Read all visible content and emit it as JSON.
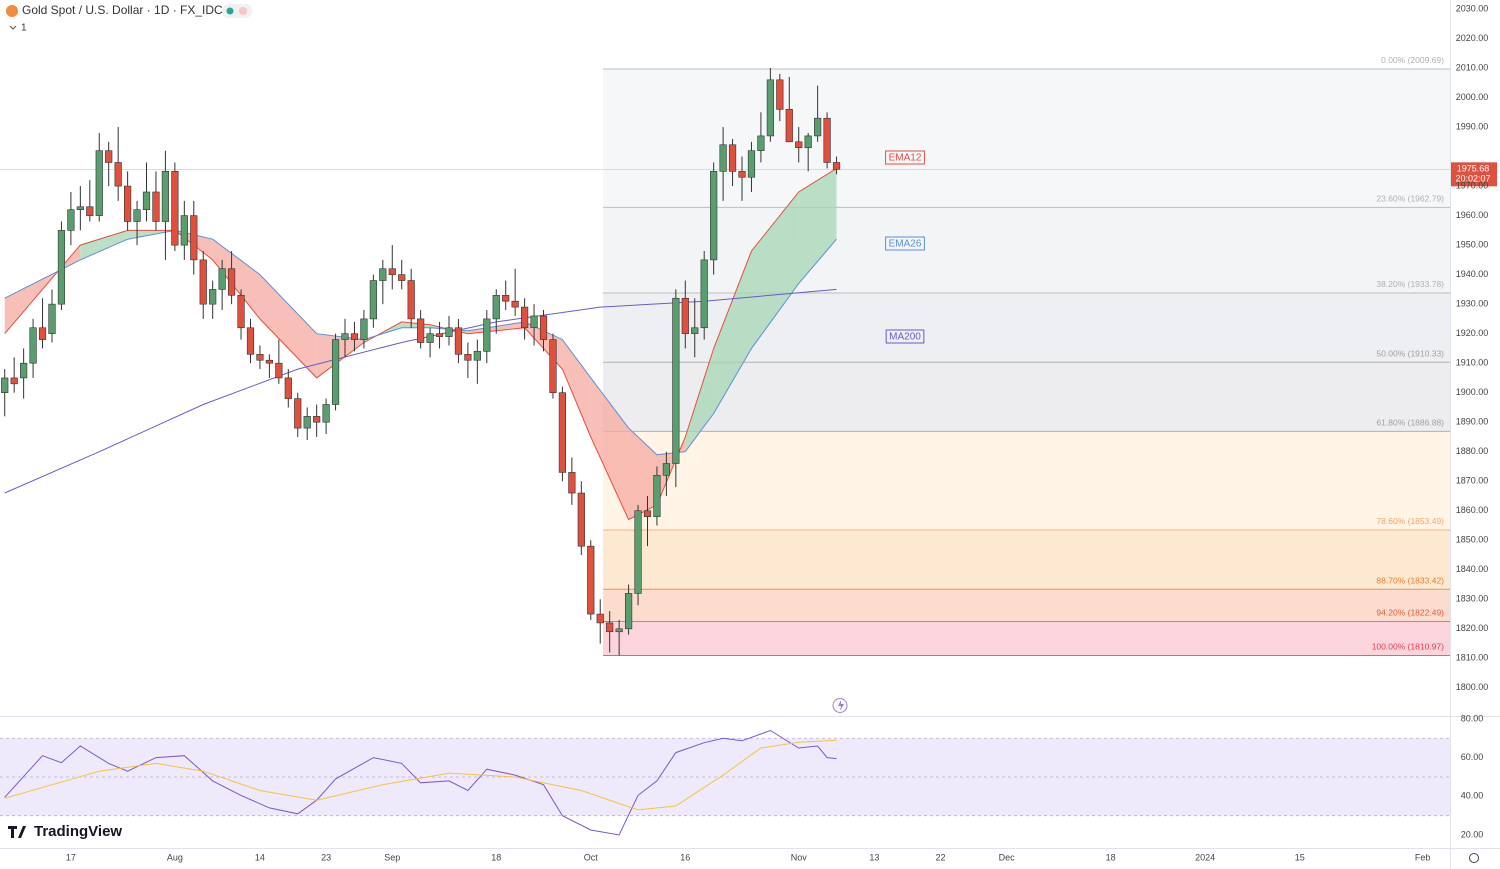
{
  "chart_data": [
    {
      "type": "candlestick",
      "title": "Gold Spot / U.S. Dollar · 1D · FX_IDC",
      "interval_badge": "1",
      "brand": "TradingView",
      "up_color": "#5a9e6f",
      "down_color": "#e0503f",
      "ohlc": {
        "open": [
          1900,
          1905,
          1905,
          1910,
          1922,
          1920,
          1930,
          1955,
          1962,
          1963,
          1960,
          1982,
          1978,
          1970,
          1958,
          1962,
          1968,
          1958,
          1975,
          1950,
          1960,
          1945,
          1930,
          1935,
          1942,
          1933,
          1922,
          1913,
          1911,
          1910,
          1905,
          1898,
          1888,
          1892,
          1890,
          1896,
          1918,
          1920,
          1918,
          1925,
          1938,
          1942,
          1940,
          1938,
          1925,
          1917,
          1920,
          1919,
          1922,
          1913,
          1911,
          1914,
          1925,
          1933,
          1931,
          1929,
          1922,
          1926,
          1918,
          1900,
          1873,
          1866,
          1848,
          1825,
          1822,
          1819,
          1820,
          1832,
          1860,
          1858,
          1872,
          1876,
          1932,
          1920,
          1922,
          1945,
          1975,
          1984,
          1975,
          1973,
          1982,
          1987,
          2006,
          1996,
          1985,
          1983,
          1987,
          1993,
          1978
        ],
        "high": [
          1908,
          1912,
          1915,
          1925,
          1932,
          1935,
          1958,
          1968,
          1970,
          1972,
          1988,
          1985,
          1990,
          1975,
          1965,
          1978,
          1975,
          1982,
          1978,
          1965,
          1965,
          1948,
          1938,
          1945,
          1948,
          1935,
          1925,
          1916,
          1913,
          1918,
          1908,
          1900,
          1895,
          1896,
          1898,
          1920,
          1925,
          1924,
          1928,
          1940,
          1945,
          1950,
          1945,
          1942,
          1928,
          1922,
          1924,
          1926,
          1925,
          1917,
          1918,
          1928,
          1935,
          1938,
          1942,
          1932,
          1930,
          1928,
          1920,
          1902,
          1878,
          1870,
          1850,
          1830,
          1826,
          1823,
          1835,
          1862,
          1865,
          1875,
          1880,
          1935,
          1938,
          1932,
          1948,
          1978,
          1990,
          1986,
          1980,
          1985,
          1995,
          2010,
          2008,
          2007,
          1990,
          1988,
          2004,
          1995,
          1980
        ],
        "low": [
          1892,
          1900,
          1898,
          1905,
          1915,
          1917,
          1928,
          1950,
          1955,
          1958,
          1958,
          1970,
          1965,
          1955,
          1950,
          1958,
          1955,
          1945,
          1948,
          1945,
          1940,
          1925,
          1925,
          1928,
          1930,
          1918,
          1910,
          1908,
          1905,
          1903,
          1895,
          1885,
          1884,
          1885,
          1886,
          1894,
          1912,
          1914,
          1915,
          1922,
          1930,
          1935,
          1935,
          1922,
          1915,
          1912,
          1915,
          1916,
          1910,
          1905,
          1903,
          1910,
          1920,
          1928,
          1926,
          1918,
          1916,
          1914,
          1898,
          1870,
          1862,
          1845,
          1823,
          1815,
          1812,
          1810.97,
          1818,
          1828,
          1848,
          1855,
          1865,
          1868,
          1915,
          1912,
          1918,
          1940,
          1965,
          1970,
          1965,
          1968,
          1978,
          1985,
          1992,
          1985,
          1978,
          1975,
          1985,
          1976,
          1974
        ],
        "close": [
          1905,
          1903,
          1910,
          1922,
          1918,
          1930,
          1955,
          1962,
          1963,
          1960,
          1982,
          1978,
          1970,
          1958,
          1962,
          1968,
          1958,
          1975,
          1950,
          1960,
          1945,
          1930,
          1935,
          1942,
          1933,
          1922,
          1913,
          1911,
          1910,
          1905,
          1898,
          1888,
          1892,
          1890,
          1896,
          1918,
          1920,
          1918,
          1925,
          1938,
          1942,
          1940,
          1938,
          1925,
          1917,
          1920,
          1919,
          1922,
          1913,
          1911,
          1914,
          1925,
          1933,
          1931,
          1929,
          1922,
          1926,
          1918,
          1900,
          1873,
          1866,
          1848,
          1825,
          1822,
          1819,
          1820,
          1832,
          1860,
          1858,
          1872,
          1876,
          1932,
          1920,
          1922,
          1945,
          1975,
          1984,
          1975,
          1973,
          1982,
          1987,
          2006,
          1996,
          1985,
          1983,
          1987,
          1993,
          1978,
          1975.68
        ]
      },
      "overlays": [
        {
          "name": "EMA12",
          "color": "#e0503f",
          "x": [
            0,
            8,
            13,
            18,
            22,
            27,
            33,
            38,
            42,
            45,
            49,
            55,
            59,
            62,
            66,
            69,
            72,
            75,
            79,
            84,
            88
          ],
          "values": [
            1920,
            1950,
            1955,
            1955,
            1945,
            1925,
            1905,
            1917,
            1924,
            1923,
            1920,
            1922,
            1908,
            1885,
            1857,
            1862,
            1885,
            1915,
            1948,
            1968,
            1976
          ]
        },
        {
          "name": "EMA26",
          "color": "#5b8fd6",
          "x": [
            0,
            8,
            13,
            18,
            22,
            27,
            33,
            38,
            42,
            45,
            49,
            55,
            59,
            62,
            66,
            69,
            72,
            75,
            79,
            84,
            88
          ],
          "values": [
            1932,
            1945,
            1952,
            1955,
            1952,
            1940,
            1920,
            1918,
            1922,
            1922,
            1921,
            1924,
            1918,
            1905,
            1888,
            1879,
            1880,
            1893,
            1915,
            1937,
            1952
          ]
        },
        {
          "name": "MA200",
          "color": "#6a5acd",
          "x": [
            0,
            10,
            21,
            31,
            42,
            52,
            63,
            74,
            88
          ],
          "values": [
            1866,
            1880,
            1896,
            1908,
            1917,
            1924,
            1929,
            1931,
            1935
          ]
        }
      ],
      "cloud_colors": {
        "up": "#a5d6b4",
        "down": "#f6a9a2"
      },
      "fib": {
        "x_start": 63.3,
        "levels": [
          {
            "value": 2009.69,
            "label": "0.00% (2009.69)",
            "color": "#b0b0b0"
          },
          {
            "value": 1962.79,
            "label": "23.60% (1962.79)",
            "color": "#b0b0b0"
          },
          {
            "value": 1933.78,
            "label": "38.20% (1933.78)",
            "color": "#b0b0b0"
          },
          {
            "value": 1910.33,
            "label": "50.00% (1910.33)",
            "color": "#a0a0a0"
          },
          {
            "value": 1886.88,
            "label": "61.80% (1886.88)",
            "color": "#a0a0a0"
          },
          {
            "value": 1853.49,
            "label": "78.60% (1853.49)",
            "color": "#f3a56a"
          },
          {
            "value": 1833.42,
            "label": "88.70% (1833.42)",
            "color": "#e8802b"
          },
          {
            "value": 1822.49,
            "label": "94.20% (1822.49)",
            "color": "#e0603a"
          },
          {
            "value": 1810.97,
            "label": "100.00% (1810.97)",
            "color": "#e04050"
          }
        ],
        "fills": [
          "#f6f7f9",
          "#f3f4f6",
          "#eeeff2",
          "#ededf0",
          "#fff4e6",
          "#fde8d2",
          "#fcdccf",
          "#fbd5db"
        ]
      },
      "last_price": 1975.68,
      "countdown": "20:02:07",
      "last_color": "#e0503f",
      "xlim": [
        -0.5,
        152.9
      ],
      "ylim": [
        1790.8,
        2033.05
      ],
      "xticks": [
        {
          "value": 7,
          "label": "17"
        },
        {
          "value": 18,
          "label": "Aug"
        },
        {
          "value": 27,
          "label": "14"
        },
        {
          "value": 34,
          "label": "23"
        },
        {
          "value": 41,
          "label": "Sep"
        },
        {
          "value": 52,
          "label": "18"
        },
        {
          "value": 62,
          "label": "Oct"
        },
        {
          "value": 72,
          "label": "16"
        },
        {
          "value": 84,
          "label": "Nov"
        },
        {
          "value": 92,
          "label": "13"
        },
        {
          "value": 99,
          "label": "22"
        },
        {
          "value": 106,
          "label": "Dec"
        },
        {
          "value": 117,
          "label": "18"
        },
        {
          "value": 127,
          "label": "2024"
        },
        {
          "value": 137,
          "label": "15"
        },
        {
          "value": 150,
          "label": "Feb"
        }
      ],
      "yticks": [
        {
          "value": 2030,
          "label": "2030.00"
        },
        {
          "value": 2020,
          "label": "2020.00"
        },
        {
          "value": 2010,
          "label": "2010.00"
        },
        {
          "value": 2000,
          "label": "2000.00"
        },
        {
          "value": 1990,
          "label": "1990.00"
        },
        {
          "value": 1980,
          "label": "1980.00"
        },
        {
          "value": 1970,
          "label": "1970.00"
        },
        {
          "value": 1960,
          "label": "1960.00"
        },
        {
          "value": 1950,
          "label": "1950.00"
        },
        {
          "value": 1940,
          "label": "1940.00"
        },
        {
          "value": 1930,
          "label": "1930.00"
        },
        {
          "value": 1920,
          "label": "1920.00"
        },
        {
          "value": 1910,
          "label": "1910.00"
        },
        {
          "value": 1900,
          "label": "1900.00"
        },
        {
          "value": 1890,
          "label": "1890.00"
        },
        {
          "value": 1880,
          "label": "1880.00"
        },
        {
          "value": 1870,
          "label": "1870.00"
        },
        {
          "value": 1860,
          "label": "1860.00"
        },
        {
          "value": 1850,
          "label": "1850.00"
        },
        {
          "value": 1840,
          "label": "1840.00"
        },
        {
          "value": 1830,
          "label": "1830.00"
        },
        {
          "value": 1820,
          "label": "1820.00"
        },
        {
          "value": 1810,
          "label": "1810.00"
        },
        {
          "value": 1800,
          "label": "1800.00"
        }
      ],
      "grid": false
    },
    {
      "type": "line",
      "xlim": [
        -0.5,
        152.9
      ],
      "ylim": [
        13.3,
        81
      ],
      "yticks": [
        {
          "value": 80,
          "label": "80.00"
        },
        {
          "value": 60,
          "label": "60.00"
        },
        {
          "value": 40,
          "label": "40.00"
        },
        {
          "value": 20,
          "label": "20.00"
        }
      ],
      "levels": [
        70,
        50,
        30
      ],
      "band_color": "#efeafb",
      "series": [
        {
          "color": "#7e57c2",
          "x": [
            0,
            4,
            6,
            8,
            11,
            13,
            16,
            19,
            22,
            25,
            28,
            31,
            33,
            35,
            39,
            42,
            44,
            47,
            49,
            51,
            54,
            57,
            59,
            62,
            65,
            67,
            69,
            71,
            74,
            76,
            78,
            81,
            84,
            86,
            87,
            88
          ],
          "values": [
            39.5,
            61,
            57.4,
            66,
            57,
            53,
            60,
            61,
            48,
            40.5,
            34,
            31,
            38,
            49,
            60,
            57,
            47,
            48,
            43,
            54,
            51,
            46,
            30,
            22.6,
            20,
            40.5,
            48,
            62.6,
            67.7,
            70,
            68.7,
            74,
            65,
            66,
            60,
            59.5
          ]
        },
        {
          "color": "#f5c242",
          "x": [
            0,
            10,
            16,
            21,
            27,
            33,
            40,
            47,
            54,
            61,
            67,
            71,
            76,
            80,
            84,
            88
          ],
          "values": [
            39,
            53,
            57,
            53,
            43,
            38,
            46,
            52,
            50,
            43,
            33,
            35,
            51,
            65,
            68,
            69
          ]
        }
      ],
      "grid": false
    }
  ]
}
